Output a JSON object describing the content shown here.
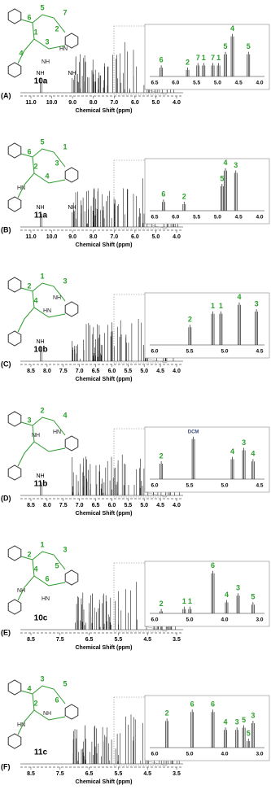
{
  "panels": [
    {
      "label": "(A)",
      "compound": "10a",
      "axis_title": "Chemical Shift (ppm)",
      "main_ticks": [
        "11.0",
        "10.0",
        "9.0",
        "8.0",
        "7.0",
        "6.0",
        "5.0",
        "4.0"
      ],
      "main_peak_labels": [
        "NH",
        "NH"
      ],
      "inset_ticks": [
        "6.5",
        "6.0",
        "5.5",
        "5.0",
        "4.5",
        "4.0"
      ],
      "inset_peak_labels": [
        "6",
        "2",
        "7",
        "1",
        "7",
        "1",
        "5",
        "4",
        "5"
      ],
      "structure_labels": [
        "5",
        "6",
        "7",
        "1",
        "2",
        "3",
        "4",
        "NH",
        "HN"
      ]
    },
    {
      "label": "(B)",
      "compound": "11a",
      "axis_title": "Chemical Shift (ppm)",
      "main_ticks": [
        "11.0",
        "10.0",
        "9.0",
        "8.0",
        "7.0",
        "6.0",
        "5.0",
        "4.0"
      ],
      "main_peak_labels": [
        "NH",
        "NH"
      ],
      "inset_ticks": [
        "6.5",
        "6.0",
        "5.5",
        "5.0",
        "4.5",
        "4.0"
      ],
      "inset_peak_labels": [
        "6",
        "2",
        "4",
        "5",
        "3"
      ],
      "structure_labels": [
        "5",
        "6",
        "1",
        "2",
        "3",
        "4",
        "HN"
      ]
    },
    {
      "label": "(C)",
      "compound": "10b",
      "axis_title": "Chemical Shift (ppm)",
      "main_ticks": [
        "8.5",
        "8.0",
        "7.5",
        "7.0",
        "6.5",
        "6.0",
        "5.5",
        "5.0",
        "4.5",
        "4.0"
      ],
      "main_peak_labels": [
        "NH"
      ],
      "inset_ticks": [
        "6.0",
        "5.5",
        "5.0",
        "4.5"
      ],
      "inset_peak_labels": [
        "2",
        "1",
        "1",
        "4",
        "3"
      ],
      "structure_labels": [
        "1",
        "2",
        "3",
        "4",
        "NH",
        "HN"
      ]
    },
    {
      "label": "(D)",
      "compound": "11b",
      "axis_title": "Chemical Shift (ppm)",
      "main_ticks": [
        "8.5",
        "8.0",
        "7.5",
        "7.0",
        "6.5",
        "6.0",
        "5.5",
        "5.0",
        "4.5",
        "4.0"
      ],
      "main_peak_labels": [
        "NH"
      ],
      "inset_ticks": [
        "6.0",
        "5.5",
        "5.0",
        "4.5"
      ],
      "inset_peak_labels": [
        "2",
        "DCM",
        "4",
        "3",
        "4"
      ],
      "structure_labels": [
        "2",
        "3",
        "4",
        "NH",
        "HN"
      ]
    },
    {
      "label": "(E)",
      "compound": "10c",
      "axis_title": "Chemical Shift (ppm)",
      "main_ticks": [
        "8.5",
        "7.5",
        "6.5",
        "5.5",
        "4.5",
        "3.5"
      ],
      "main_peak_labels": [],
      "inset_ticks": [
        "6.0",
        "5.0",
        "4.0",
        "3.0"
      ],
      "inset_peak_labels": [
        "2",
        "1",
        "1",
        "6",
        "4",
        "3",
        "5"
      ],
      "structure_labels": [
        "1",
        "2",
        "3",
        "4",
        "5",
        "6",
        "NH",
        "HN"
      ]
    },
    {
      "label": "(F)",
      "compound": "11c",
      "axis_title": "Chemical Shift (ppm)",
      "main_ticks": [
        "8.5",
        "7.5",
        "6.5",
        "5.5",
        "4.5",
        "3.5"
      ],
      "main_peak_labels": [],
      "inset_ticks": [
        "6.0",
        "5.0",
        "4.0",
        "3.0"
      ],
      "inset_peak_labels": [
        "2",
        "6",
        "6",
        "4",
        "3",
        "5",
        "3",
        "5"
      ],
      "structure_labels": [
        "3",
        "4",
        "5",
        "2",
        "6",
        "NH",
        "HN"
      ]
    }
  ]
}
